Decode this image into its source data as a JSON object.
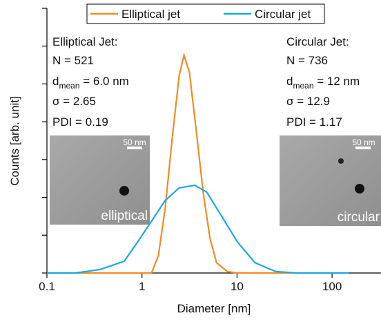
{
  "chart_data": {
    "type": "line",
    "xlabel": "Diameter [nm]",
    "ylabel": "Counts [arb. unit]",
    "xscale": "log",
    "xlim": [
      0.1,
      330
    ],
    "xticks": [
      0.1,
      1,
      10,
      100
    ],
    "ylim": [
      0,
      7
    ],
    "yticks": [
      0,
      1,
      2,
      3,
      4,
      5,
      6,
      7
    ],
    "series": [
      {
        "name": "Elliptical jet",
        "color": "#f28a22",
        "x": [
          0.1,
          1,
          1.26,
          1.49,
          1.76,
          2.08,
          2.46,
          2.77,
          3.16,
          3.73,
          4.42,
          5.2,
          6.1,
          7.9,
          10,
          150
        ],
        "values": [
          0,
          0,
          0,
          0.46,
          1.74,
          3.56,
          5.21,
          5.76,
          5.3,
          3.75,
          2.1,
          0.91,
          0.27,
          0.04,
          0,
          0
        ]
      },
      {
        "name": "Circular jet",
        "color": "#1aa7e8",
        "x": [
          0.1,
          0.2,
          0.36,
          0.65,
          0.9,
          1.26,
          1.76,
          2.46,
          3.6,
          4.8,
          6.7,
          10.1,
          15.5,
          25.5,
          42,
          150
        ],
        "values": [
          0,
          0,
          0.09,
          0.31,
          0.82,
          1.37,
          1.92,
          2.25,
          2.32,
          2.14,
          1.55,
          0.82,
          0.27,
          0.04,
          0,
          0
        ]
      }
    ],
    "annotations": [
      {
        "lines": [
          [
            "Elliptical Jet:"
          ],
          [
            "N = 521"
          ],
          [
            "d",
            "mean",
            " = 6.0 nm"
          ],
          [
            "σ = 2.65"
          ],
          [
            "PDI = 0.19"
          ]
        ],
        "scale_bar": "50 nm",
        "image_label": "elliptical"
      },
      {
        "lines": [
          [
            "Circular Jet:"
          ],
          [
            "N = 736"
          ],
          [
            "d",
            "mean",
            " = 12 nm"
          ],
          [
            "σ = 12.9"
          ],
          [
            "PDI = 1.17"
          ]
        ],
        "scale_bar": "50 nm",
        "image_label": "circular"
      }
    ]
  }
}
